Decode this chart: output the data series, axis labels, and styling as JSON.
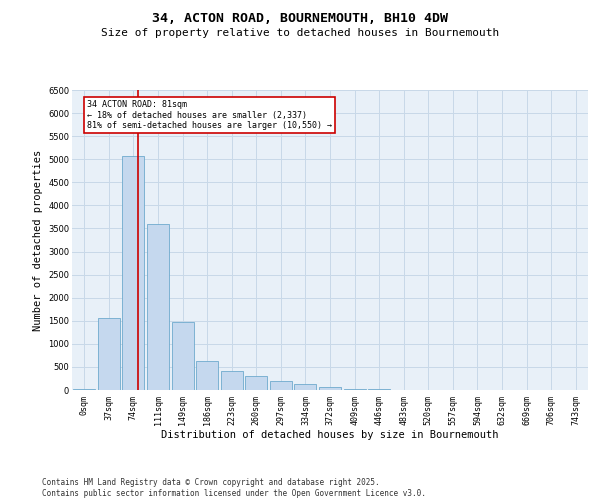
{
  "title_line1": "34, ACTON ROAD, BOURNEMOUTH, BH10 4DW",
  "title_line2": "Size of property relative to detached houses in Bournemouth",
  "xlabel": "Distribution of detached houses by size in Bournemouth",
  "ylabel": "Number of detached properties",
  "categories": [
    "0sqm",
    "37sqm",
    "74sqm",
    "111sqm",
    "149sqm",
    "186sqm",
    "223sqm",
    "260sqm",
    "297sqm",
    "334sqm",
    "372sqm",
    "409sqm",
    "446sqm",
    "483sqm",
    "520sqm",
    "557sqm",
    "594sqm",
    "632sqm",
    "669sqm",
    "706sqm",
    "743sqm"
  ],
  "values": [
    30,
    1570,
    5080,
    3600,
    1480,
    620,
    410,
    300,
    190,
    130,
    55,
    30,
    12,
    5,
    2,
    0,
    0,
    0,
    0,
    0,
    0
  ],
  "bar_color": "#c5d8ee",
  "bar_edge_color": "#6eaacd",
  "vline_color": "#cc0000",
  "annotation_text": "34 ACTON ROAD: 81sqm\n← 18% of detached houses are smaller (2,337)\n81% of semi-detached houses are larger (10,550) →",
  "annotation_box_color": "#cc0000",
  "ylim": [
    0,
    6500
  ],
  "yticks": [
    0,
    500,
    1000,
    1500,
    2000,
    2500,
    3000,
    3500,
    4000,
    4500,
    5000,
    5500,
    6000,
    6500
  ],
  "grid_color": "#c8d8e8",
  "bg_color": "#e8f0f8",
  "footer_text": "Contains HM Land Registry data © Crown copyright and database right 2025.\nContains public sector information licensed under the Open Government Licence v3.0.",
  "title_fontsize": 9.5,
  "subtitle_fontsize": 8,
  "tick_fontsize": 6,
  "label_fontsize": 7.5,
  "footer_fontsize": 5.5
}
